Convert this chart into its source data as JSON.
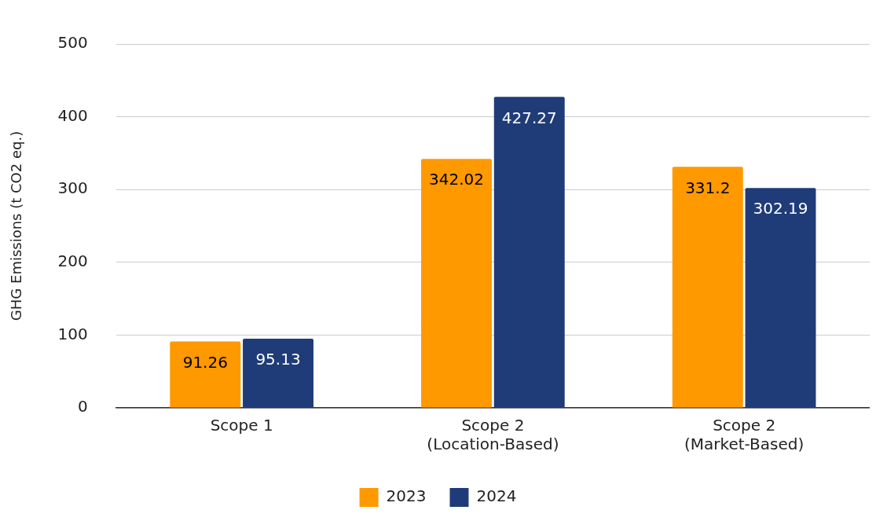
{
  "chart_data": {
    "type": "bar",
    "ylabel": "GHG Emissions (t CO2 eq.)",
    "categories": [
      "Scope 1",
      "Scope 2\n(Location-Based)",
      "Scope 2\n(Market-Based)"
    ],
    "series": [
      {
        "name": "2023",
        "color": "#ff9900",
        "values": [
          91.26,
          342.02,
          331.2
        ]
      },
      {
        "name": "2024",
        "color": "#1f3c78",
        "values": [
          95.13,
          427.27,
          302.19
        ]
      }
    ],
    "ylim": [
      0,
      500
    ],
    "yticks": [
      0,
      100,
      200,
      300,
      400,
      500
    ],
    "grid": "y",
    "legend": "bottom",
    "data_labels": true
  }
}
